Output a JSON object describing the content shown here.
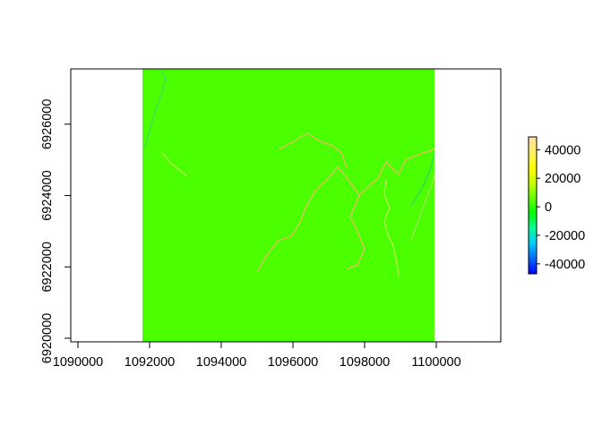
{
  "chart_data": {
    "type": "heatmap",
    "title": "",
    "xlabel": "",
    "ylabel": "",
    "xlim": [
      1089800,
      1101800
    ],
    "ylim": [
      6919900,
      6927550
    ],
    "raster_extent": {
      "x": [
        1091800,
        1099950
      ],
      "y": [
        6919900,
        6927550
      ]
    },
    "background_value": 0,
    "x_ticks": [
      1090000,
      1092000,
      1094000,
      1096000,
      1098000,
      1100000
    ],
    "x_tick_labels": [
      "1090000",
      "1092000",
      "1094000",
      "1096000",
      "1098000",
      "1100000"
    ],
    "y_ticks": [
      6920000,
      6922000,
      6924000,
      6926000
    ],
    "y_tick_labels": [
      "6920000",
      "6922000",
      "6924000",
      "6926000"
    ],
    "legend": {
      "position": "right",
      "range": [
        -47000,
        49000
      ],
      "ticks": [
        40000,
        20000,
        0,
        -20000,
        -40000
      ],
      "tick_labels": [
        "40000",
        "20000",
        "0",
        "-20000",
        "-40000"
      ],
      "colors": [
        "#0000ff",
        "#0066ff",
        "#00ccff",
        "#00ff99",
        "#00ff00",
        "#66ff00",
        "#ccff00",
        "#ffff00",
        "#ffee66",
        "#ffe0a0"
      ]
    },
    "raster_fill_color": "#4cff00",
    "streams": [
      {
        "color": "#33dd66",
        "points": [
          [
            1092250,
            6927550
          ],
          [
            1092450,
            6927300
          ],
          [
            1092350,
            6926900
          ],
          [
            1092150,
            6926350
          ],
          [
            1092050,
            6926000
          ],
          [
            1091950,
            6925650
          ],
          [
            1091850,
            6925300
          ]
        ]
      },
      {
        "color": "#c8ee66",
        "points": [
          [
            1092350,
            6925200
          ],
          [
            1092600,
            6924900
          ],
          [
            1092850,
            6924700
          ],
          [
            1093050,
            6924550
          ]
        ]
      },
      {
        "color": "#ffb070",
        "points": [
          [
            1095000,
            6921850
          ],
          [
            1095250,
            6922300
          ],
          [
            1095600,
            6922750
          ],
          [
            1095950,
            6922850
          ],
          [
            1096200,
            6923250
          ],
          [
            1096350,
            6923650
          ],
          [
            1096600,
            6924100
          ],
          [
            1097000,
            6924500
          ],
          [
            1097250,
            6924800
          ],
          [
            1097500,
            6924500
          ],
          [
            1097850,
            6924000
          ],
          [
            1098050,
            6924200
          ],
          [
            1098350,
            6924450
          ],
          [
            1098600,
            6924950
          ],
          [
            1098950,
            6924600
          ],
          [
            1099150,
            6925000
          ],
          [
            1099650,
            6925200
          ],
          [
            1099950,
            6925300
          ]
        ]
      },
      {
        "color": "#ffb070",
        "points": [
          [
            1095600,
            6925300
          ],
          [
            1096000,
            6925500
          ],
          [
            1096400,
            6925750
          ],
          [
            1096700,
            6925550
          ],
          [
            1097100,
            6925400
          ],
          [
            1097350,
            6925200
          ],
          [
            1097500,
            6924800
          ]
        ]
      },
      {
        "color": "#ffb070",
        "points": [
          [
            1097500,
            6921950
          ],
          [
            1097800,
            6922050
          ],
          [
            1098000,
            6922500
          ],
          [
            1097800,
            6923000
          ],
          [
            1097600,
            6923400
          ],
          [
            1097850,
            6924000
          ]
        ]
      },
      {
        "color": "#ccee66",
        "points": [
          [
            1098950,
            6921750
          ],
          [
            1098900,
            6922100
          ],
          [
            1098800,
            6922600
          ],
          [
            1098650,
            6922900
          ],
          [
            1098550,
            6923300
          ],
          [
            1098700,
            6923650
          ],
          [
            1098550,
            6924050
          ],
          [
            1098600,
            6924450
          ]
        ]
      },
      {
        "color": "#aadd66",
        "points": [
          [
            1099300,
            6922750
          ],
          [
            1099500,
            6923300
          ],
          [
            1099700,
            6923850
          ],
          [
            1099850,
            6924250
          ],
          [
            1099950,
            6924600
          ]
        ]
      },
      {
        "color": "#2fcf6a",
        "points": [
          [
            1099950,
            6925150
          ],
          [
            1099820,
            6924700
          ],
          [
            1099650,
            6924300
          ],
          [
            1099450,
            6923950
          ],
          [
            1099300,
            6923700
          ]
        ]
      }
    ]
  }
}
